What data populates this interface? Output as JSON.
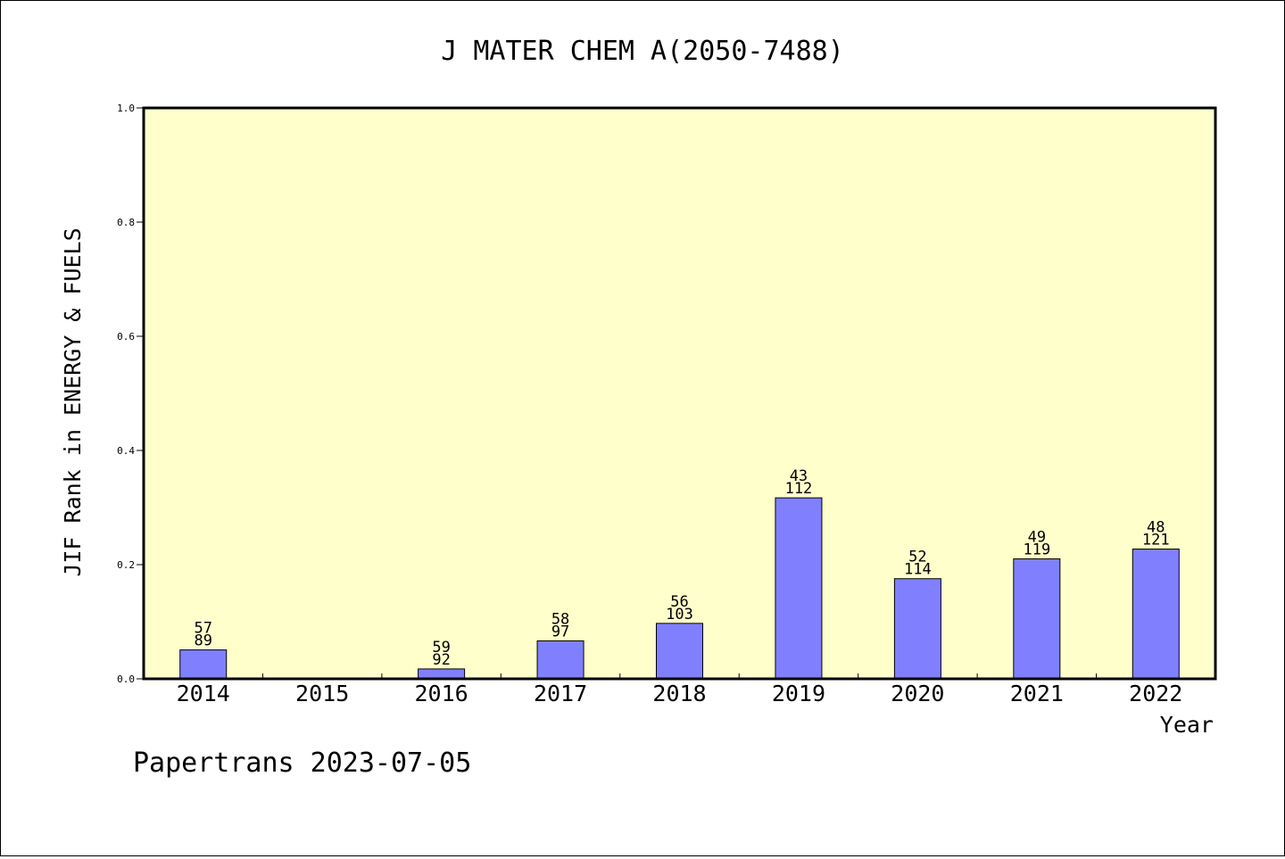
{
  "chart_data": {
    "type": "bar",
    "title": "J MATER CHEM A(2050-7488)",
    "ylabel": "JIF Rank in ENERGY & FUELS",
    "xlabel": "Year",
    "categories": [
      "2014",
      "2015",
      "2016",
      "2017",
      "2018",
      "2019",
      "2020",
      "2021",
      "2022"
    ],
    "values": [
      0.0506,
      null,
      0.0173,
      0.0665,
      0.0971,
      0.317,
      0.1754,
      0.2101,
      0.2273
    ],
    "rank": [
      "57",
      "",
      "59",
      "58",
      "56",
      "43",
      "52",
      "49",
      "48"
    ],
    "total": [
      "89",
      "",
      "92",
      "97",
      "103",
      "112",
      "114",
      "119",
      "121"
    ],
    "yticks": [
      "0.0",
      "0.2",
      "0.4",
      "0.6",
      "0.8",
      "1.0"
    ],
    "ylim": [
      0,
      1
    ],
    "grid": false,
    "legend": "none",
    "colors": {
      "plot_background": "#ffffcc",
      "bar_fill": "#8080ff",
      "bar_stroke": "#000000",
      "axis": "#000000"
    }
  },
  "footer": {
    "watermark": "Papertrans 2023-07-05"
  }
}
